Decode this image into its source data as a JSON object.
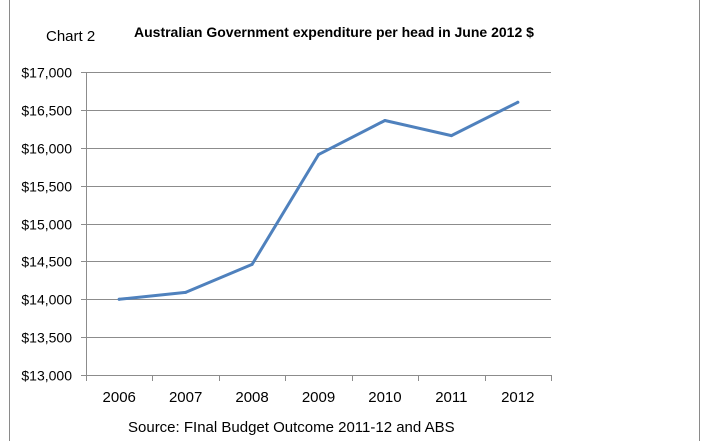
{
  "chart_label": "Chart 2",
  "source_note": "Source: FInal Budget Outcome 2011-12 and ABS",
  "chart_data": {
    "type": "line",
    "title": "Australian Government expenditure per head in June 2012 $",
    "xlabel": "",
    "ylabel": "",
    "categories": [
      "2006",
      "2007",
      "2008",
      "2009",
      "2010",
      "2011",
      "2012"
    ],
    "series": [
      {
        "values": [
          14000,
          14090,
          14460,
          15910,
          16360,
          16160,
          16600
        ],
        "color": "#4f81bd"
      }
    ],
    "ylim": [
      13000,
      17000
    ],
    "yticks": [
      13000,
      13500,
      14000,
      14500,
      15000,
      15500,
      16000,
      16500,
      17000
    ],
    "ytick_labels": [
      "$13,000",
      "$13,500",
      "$14,000",
      "$14,500",
      "$15,000",
      "$15,500",
      "$16,000",
      "$16,500",
      "$17,000"
    ],
    "grid": true,
    "legend": "none"
  }
}
